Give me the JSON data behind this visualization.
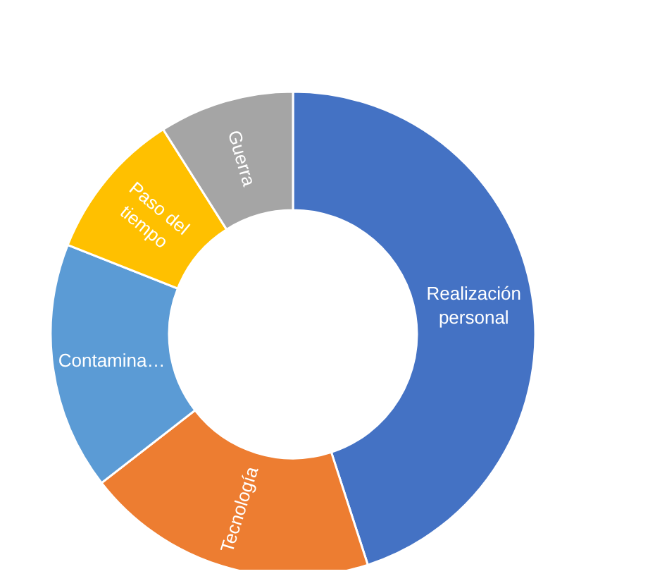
{
  "chart_data": {
    "type": "donut",
    "categories": [
      "Realización personal",
      "Tecnología",
      "Contamina…",
      "Paso del tiempo",
      "Guerra"
    ],
    "values": [
      45,
      19.5,
      16.5,
      10,
      9
    ],
    "colors": [
      "#4472c4",
      "#ed7d31",
      "#5b9bd5",
      "#ffc000",
      "#a5a5a5"
    ],
    "legend": false
  }
}
